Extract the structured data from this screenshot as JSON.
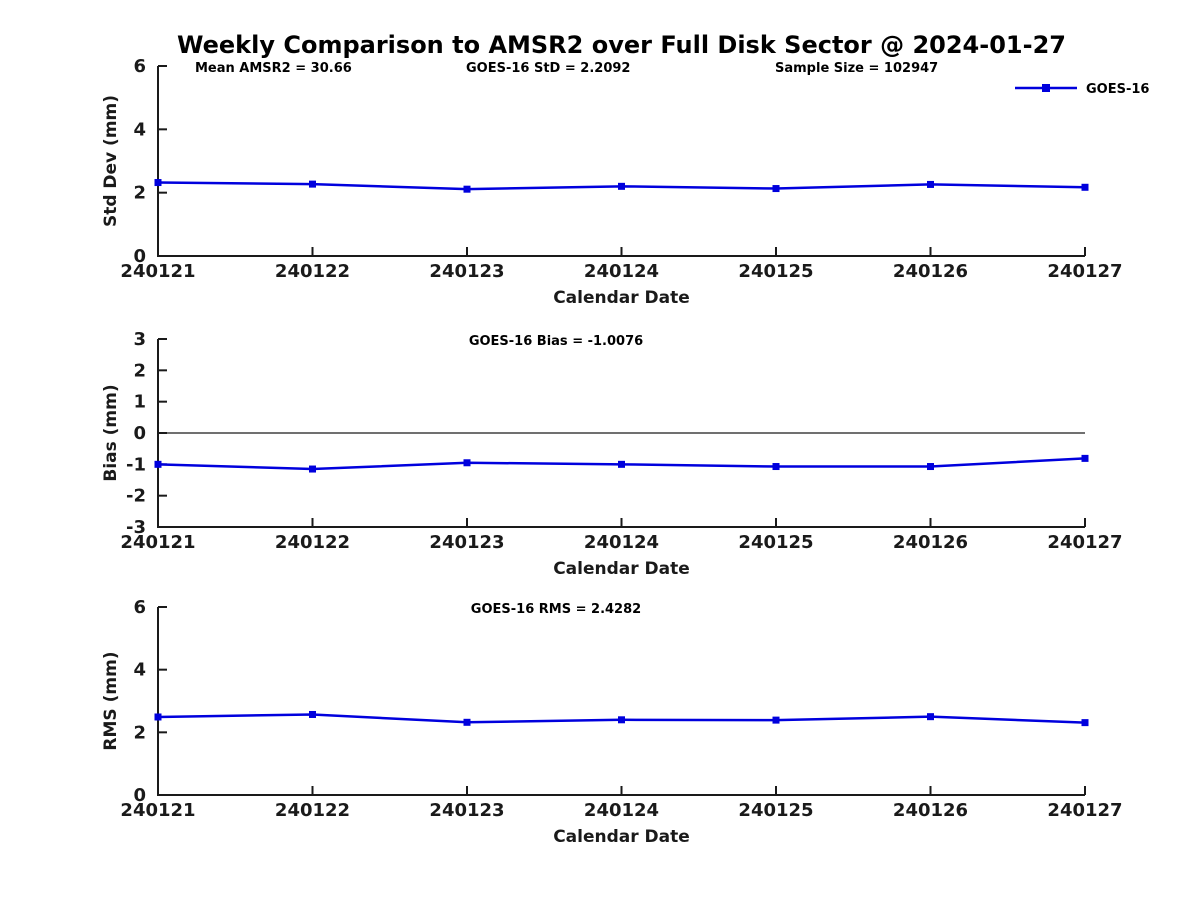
{
  "header": {
    "title": "Weekly Comparison to AMSR2 over Full Disk Sector @ 2024-01-27"
  },
  "colors": {
    "series_line": "#0000DD",
    "axis": "#1a1a1a",
    "background": "#ffffff"
  },
  "chart_data": [
    {
      "type": "line",
      "id": "std-dev",
      "categories": [
        "240121",
        "240122",
        "240123",
        "240124",
        "240125",
        "240126",
        "240127"
      ],
      "series": [
        {
          "name": "GOES-16",
          "values": [
            2.32,
            2.27,
            2.11,
            2.2,
            2.13,
            2.26,
            2.17
          ],
          "color": "#0000DD",
          "marker": "square"
        }
      ],
      "annotations": [
        "Mean AMSR2 = 30.66",
        "GOES-16 StD = 2.2092",
        "Sample Size = 102947"
      ],
      "xlabel": "Calendar Date",
      "ylabel": "Std Dev (mm)",
      "ylim": [
        0,
        6
      ],
      "yticks": [
        0,
        2,
        4,
        6
      ],
      "zero_line": false,
      "grid": false,
      "legend": {
        "show": true,
        "label": "GOES-16",
        "position": "upper right"
      }
    },
    {
      "type": "line",
      "id": "bias",
      "categories": [
        "240121",
        "240122",
        "240123",
        "240124",
        "240125",
        "240126",
        "240127"
      ],
      "series": [
        {
          "name": "GOES-16",
          "values": [
            -1.0,
            -1.15,
            -0.95,
            -1.0,
            -1.07,
            -1.07,
            -0.81
          ],
          "color": "#0000DD",
          "marker": "square"
        }
      ],
      "annotations": [
        "GOES-16 Bias  = -1.0076"
      ],
      "xlabel": "Calendar Date",
      "ylabel": "Bias (mm)",
      "ylim": [
        -3,
        3
      ],
      "yticks": [
        3,
        2,
        1,
        0,
        -1,
        -2,
        -3
      ],
      "zero_line": true,
      "grid": false,
      "legend": {
        "show": false,
        "label": "GOES-16"
      }
    },
    {
      "type": "line",
      "id": "rms",
      "categories": [
        "240121",
        "240122",
        "240123",
        "240124",
        "240125",
        "240126",
        "240127"
      ],
      "series": [
        {
          "name": "GOES-16",
          "values": [
            2.49,
            2.57,
            2.32,
            2.4,
            2.39,
            2.5,
            2.31
          ],
          "color": "#0000DD",
          "marker": "square"
        }
      ],
      "annotations": [
        "GOES-16 RMS = 2.4282"
      ],
      "xlabel": "Calendar Date",
      "ylabel": "RMS (mm)",
      "ylim": [
        0,
        6
      ],
      "yticks": [
        0,
        2,
        4,
        6
      ],
      "zero_line": false,
      "grid": false,
      "legend": {
        "show": false,
        "label": "GOES-16"
      }
    }
  ]
}
